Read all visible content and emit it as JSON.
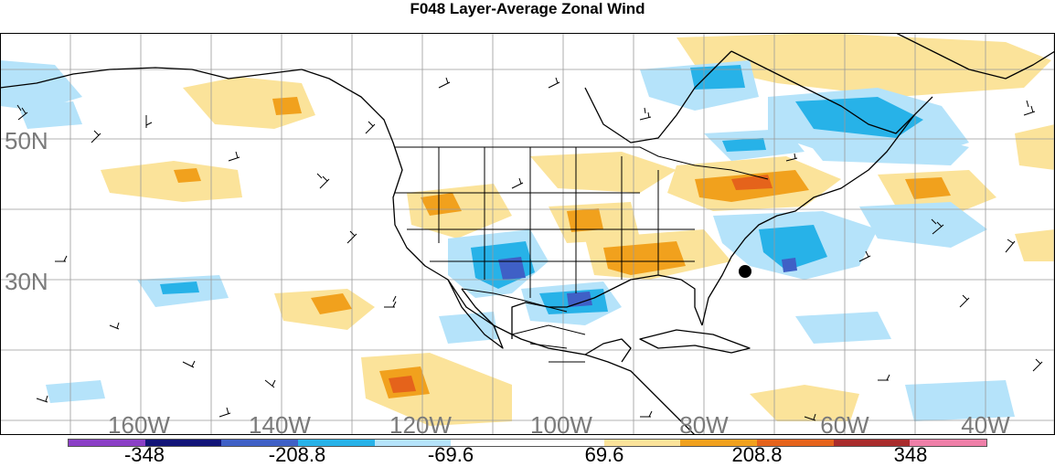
{
  "title": "F048 Layer-Average Zonal Wind",
  "map": {
    "lat_labels": [
      "50N",
      "30N"
    ],
    "lon_labels": [
      "160W",
      "140W",
      "120W",
      "100W",
      "80W",
      "60W",
      "40W"
    ],
    "colors": {
      "water": "#ffffff",
      "grid": "#9a9a9a",
      "coast": "#000000",
      "neg_light": "#b5e3fa",
      "neg_mid": "#27b2e8",
      "neg_strong": "#3f60c6",
      "pos_light": "#fbe39a",
      "pos_mid": "#f1a11d",
      "pos_strong": "#e5631b"
    }
  },
  "colorbar": {
    "colors": [
      "#8b3fc6",
      "#121478",
      "#3f60c6",
      "#27b2e8",
      "#b5e3fa",
      "#ffffff",
      "#ffffff",
      "#fbe39a",
      "#f1a11d",
      "#e5631b",
      "#a92c2c",
      "#ef7fa8"
    ],
    "labels": [
      "-348",
      "-208.8",
      "-69.6",
      "69.6",
      "208.8",
      "348"
    ]
  }
}
